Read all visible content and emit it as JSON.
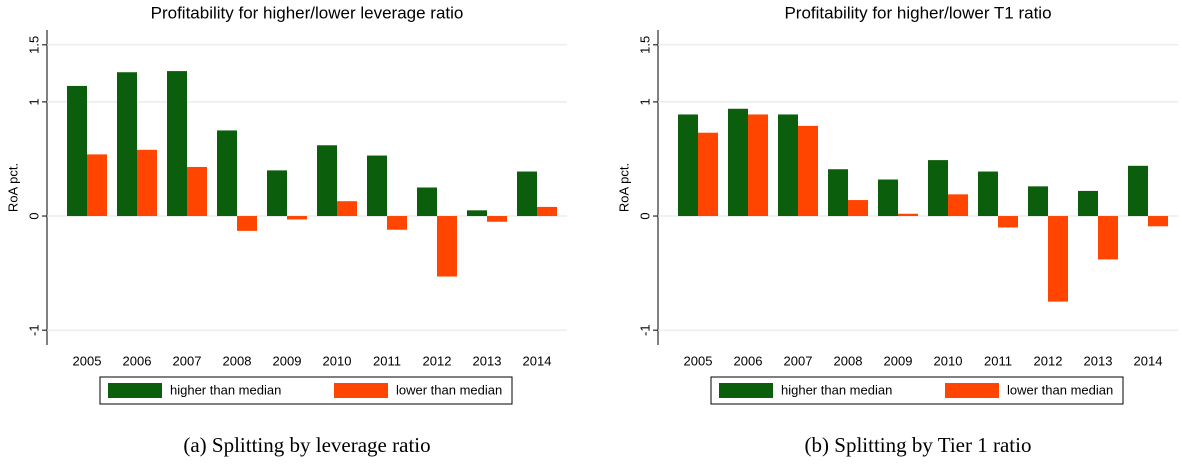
{
  "chart_data": [
    {
      "type": "bar",
      "title": "Profitability for higher/lower leverage ratio",
      "caption": "(a) Splitting by leverage ratio",
      "y_label": "RoA pct.",
      "categories": [
        "2005",
        "2006",
        "2007",
        "2008",
        "2009",
        "2010",
        "2011",
        "2012",
        "2013",
        "2014"
      ],
      "series": [
        {
          "name": "higher than median",
          "color": "#0b5e0b",
          "values": [
            1.14,
            1.26,
            1.27,
            0.75,
            0.4,
            0.62,
            0.53,
            0.25,
            0.05,
            0.39
          ]
        },
        {
          "name": "lower than median",
          "color": "#ff4500",
          "values": [
            0.54,
            0.58,
            0.43,
            -0.13,
            -0.03,
            0.13,
            -0.12,
            -0.53,
            -0.05,
            0.08
          ]
        }
      ],
      "ylim": [
        -1.13,
        1.63
      ],
      "yticks": [
        -1,
        0,
        1,
        1.5
      ],
      "grid": true
    },
    {
      "type": "bar",
      "title": "Profitability for higher/lower T1 ratio",
      "caption": "(b) Splitting by Tier 1 ratio",
      "y_label": "RoA pct.",
      "categories": [
        "2005",
        "2006",
        "2007",
        "2008",
        "2009",
        "2010",
        "2011",
        "2012",
        "2013",
        "2014"
      ],
      "series": [
        {
          "name": "higher than median",
          "color": "#0b5e0b",
          "values": [
            0.89,
            0.94,
            0.89,
            0.41,
            0.32,
            0.49,
            0.39,
            0.26,
            0.22,
            0.44
          ]
        },
        {
          "name": "lower than median",
          "color": "#ff4500",
          "values": [
            0.73,
            0.89,
            0.79,
            0.14,
            0.02,
            0.19,
            -0.1,
            -0.75,
            -0.38,
            -0.09
          ]
        }
      ],
      "ylim": [
        -1.13,
        1.63
      ],
      "yticks": [
        -1,
        0,
        1,
        1.5
      ],
      "grid": true
    }
  ]
}
